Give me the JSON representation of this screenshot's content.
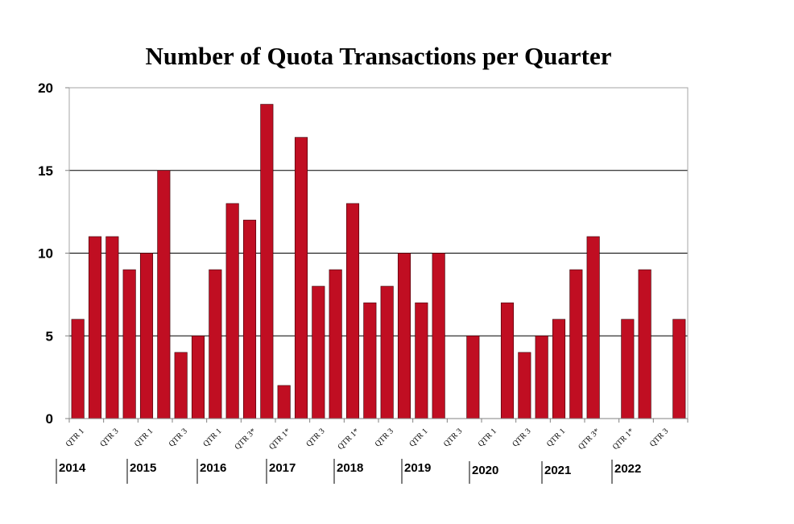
{
  "chart_data": {
    "type": "bar",
    "title": "Number of Quota Transactions per Quarter",
    "xlabel": "",
    "ylabel": "",
    "ylim": [
      0,
      20
    ],
    "yticks": [
      0,
      5,
      10,
      15,
      20
    ],
    "grid": true,
    "bar_color": "#c00e22",
    "categories": [
      "2014 QTR 1",
      "2014 QTR 2",
      "2014 QTR 3",
      "2014 QTR 4",
      "2015 QTR 1",
      "2015 QTR 2",
      "2015 QTR 3",
      "2015 QTR 4",
      "2016 QTR 1",
      "2016 QTR 2",
      "2016 QTR 3*",
      "2016 QTR 4",
      "2017 QTR 1*",
      "2017 QTR 2",
      "2017 QTR 3",
      "2017 QTR 4",
      "2018 QTR 1*",
      "2018 QTR 2",
      "2018 QTR 3",
      "2018 QTR 4",
      "2019 QTR 1",
      "2019 QTR 2",
      "2019 QTR 3",
      "2019 QTR 4",
      "2020 QTR 1",
      "2020 QTR 2",
      "2020 QTR 3",
      "2020 QTR 4",
      "2021 QTR 1",
      "2021 QTR 2",
      "2021 QTR 3*",
      "2021 QTR 4",
      "2022 QTR 1*",
      "2022 QTR 2",
      "2022 QTR 3",
      "2022 QTR 4"
    ],
    "values": [
      6,
      11,
      11,
      9,
      10,
      15,
      4,
      5,
      9,
      13,
      12,
      19,
      2,
      17,
      8,
      9,
      13,
      7,
      8,
      10,
      7,
      10,
      0,
      5,
      0,
      7,
      4,
      5,
      6,
      9,
      11,
      0,
      6,
      9,
      0,
      6
    ],
    "tick_labels": [
      "QTR 1",
      "QTR 3",
      "QTR 1",
      "QTR 3",
      "QTR 1",
      "QTR 3*",
      "QTR 1*",
      "QTR 3",
      "QTR 1*",
      "QTR 3",
      "QTR 1",
      "QTR 3",
      "QTR 1",
      "QTR 3",
      "QTR 1",
      "QTR 3*",
      "QTR 1*",
      "QTR 3"
    ],
    "years": [
      "2014",
      "2015",
      "2016",
      "2017",
      "2018",
      "2019",
      "2020",
      "2021",
      "2022"
    ]
  }
}
